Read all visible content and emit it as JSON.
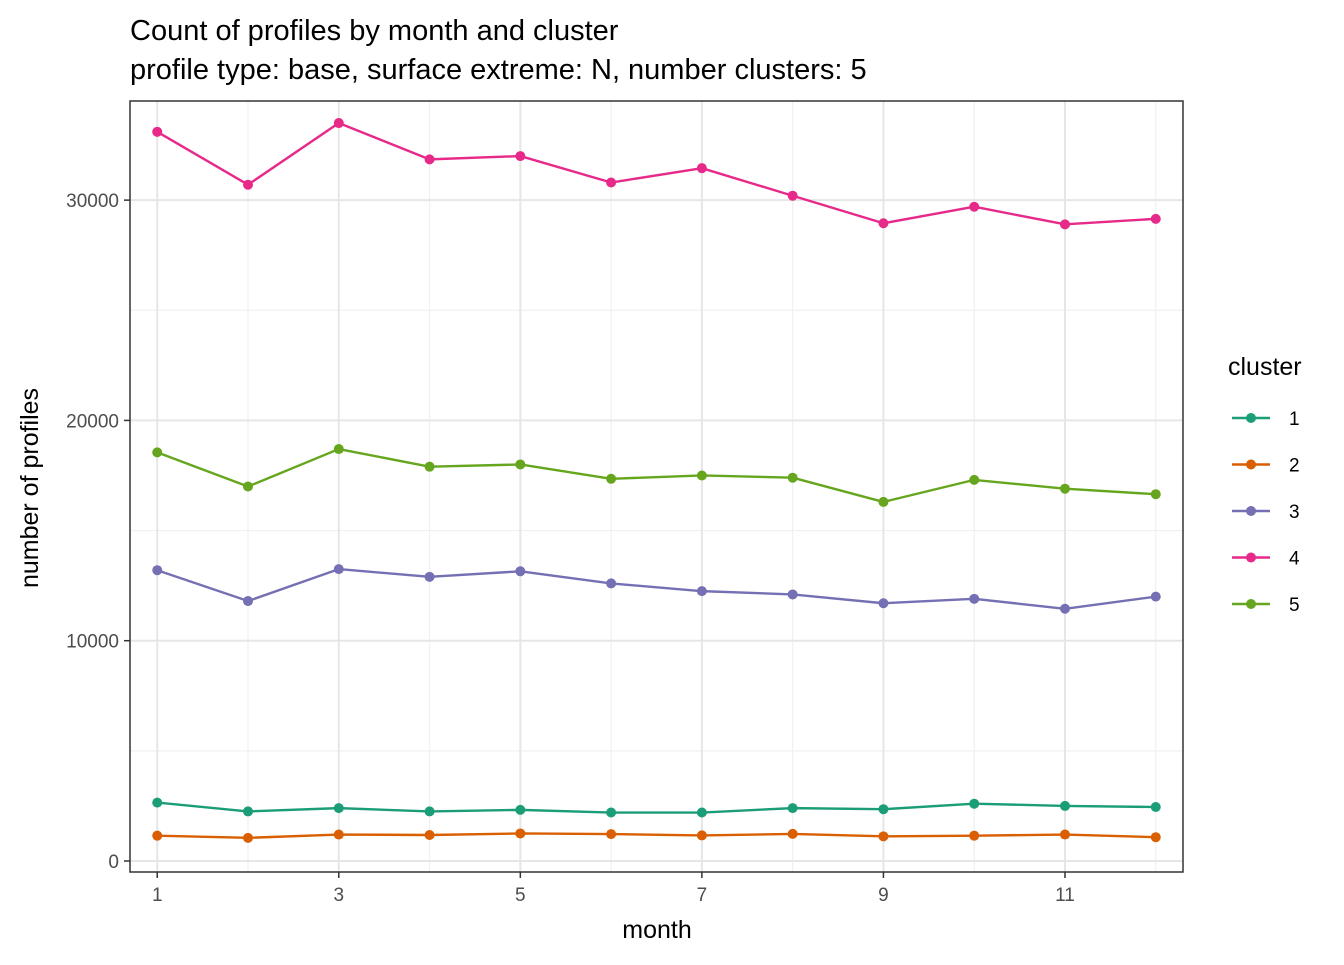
{
  "chart_data": {
    "type": "line",
    "title": "Count of profiles by month and cluster",
    "subtitle": "profile type: base, surface extreme: N, number clusters: 5",
    "xlabel": "month",
    "ylabel": "number of profiles",
    "x": [
      1,
      2,
      3,
      4,
      5,
      6,
      7,
      8,
      9,
      10,
      11,
      12
    ],
    "x_ticks": [
      1,
      3,
      5,
      7,
      9,
      11
    ],
    "y_ticks": [
      0,
      10000,
      20000,
      30000
    ],
    "xlim": [
      0.7,
      12.3
    ],
    "ylim": [
      -500,
      34500
    ],
    "grid": true,
    "legend": {
      "title": "cluster",
      "position": "right"
    },
    "series": [
      {
        "name": "1",
        "color": "#1b9e77",
        "values": [
          2650,
          2250,
          2400,
          2250,
          2320,
          2200,
          2200,
          2400,
          2350,
          2600,
          2500,
          2450
        ]
      },
      {
        "name": "2",
        "color": "#d95f02",
        "values": [
          1150,
          1050,
          1200,
          1180,
          1250,
          1220,
          1160,
          1230,
          1120,
          1150,
          1200,
          1080
        ]
      },
      {
        "name": "3",
        "color": "#7570b3",
        "values": [
          13200,
          11800,
          13250,
          12900,
          13150,
          12600,
          12250,
          12100,
          11700,
          11900,
          11450,
          12000
        ]
      },
      {
        "name": "4",
        "color": "#e7298a",
        "values": [
          33100,
          30700,
          33500,
          31850,
          32000,
          30800,
          31450,
          30200,
          28950,
          29700,
          28900,
          29150
        ]
      },
      {
        "name": "5",
        "color": "#66a61e",
        "values": [
          18550,
          17000,
          18700,
          17900,
          18000,
          17350,
          17500,
          17400,
          16300,
          17300,
          16900,
          16650
        ]
      }
    ]
  }
}
